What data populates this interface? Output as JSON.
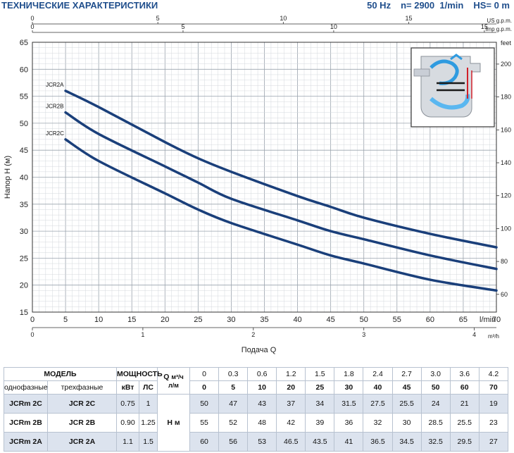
{
  "header": {
    "title": "ТЕХНИЧЕСКИЕ ХАРАКТЕРИСТИКИ",
    "frequency": "50 Hz",
    "speed": "n= 2900  1/min",
    "hs": "HS= 0 m"
  },
  "chart_data": {
    "type": "line",
    "title": "ТЕХНИЧЕСКИЕ ХАРАКТЕРИСТИКИ",
    "xlabel": "Подача  Q",
    "ylabel": "Напор H (м)",
    "x_unit": "l/min",
    "xlim": [
      0,
      70
    ],
    "ylim": [
      15,
      65
    ],
    "x_ticks": [
      0,
      5,
      10,
      15,
      20,
      25,
      30,
      35,
      40,
      45,
      50,
      55,
      60,
      65,
      70
    ],
    "y_ticks": [
      15,
      20,
      25,
      30,
      35,
      40,
      45,
      50,
      55,
      60,
      65
    ],
    "series": [
      {
        "name": "JCR2A",
        "x": [
          5,
          10,
          20,
          25,
          30,
          40,
          45,
          50,
          60,
          70
        ],
        "y": [
          56,
          53,
          46.5,
          43.5,
          41,
          36.5,
          34.5,
          32.5,
          29.5,
          27
        ]
      },
      {
        "name": "JCR2B",
        "x": [
          5,
          10,
          20,
          25,
          30,
          40,
          45,
          50,
          60,
          70
        ],
        "y": [
          52,
          48,
          42,
          39,
          36,
          32,
          30,
          28.5,
          25.5,
          23
        ]
      },
      {
        "name": "JCR2C",
        "x": [
          5,
          10,
          20,
          25,
          30,
          40,
          45,
          50,
          60,
          70
        ],
        "y": [
          47,
          43,
          37,
          34,
          31.5,
          27.5,
          25.5,
          24,
          21,
          19
        ]
      }
    ],
    "color": "#1a3f7a",
    "top_axes": [
      {
        "unit": "US g.p.m.",
        "ticks": [
          "0",
          "5",
          "10",
          "15"
        ],
        "values": [
          0,
          5,
          10,
          15
        ],
        "per_lmin": 0.2642
      },
      {
        "unit": "Imp g.p.m.",
        "ticks": [
          "0",
          "5",
          "10",
          "15"
        ],
        "values": [
          0,
          5,
          10,
          15
        ],
        "per_lmin": 0.22
      }
    ],
    "bottom_axis": {
      "unit": "m³/h",
      "ticks": [
        "0",
        "1",
        "2",
        "3",
        "4"
      ],
      "values": [
        0,
        1,
        2,
        3,
        4
      ],
      "per_lmin": 0.06
    },
    "right_axis": {
      "unit": "feet",
      "ticks": [
        "60",
        "80",
        "100",
        "120",
        "140",
        "160",
        "180",
        "200"
      ],
      "values": [
        60,
        80,
        100,
        120,
        140,
        160,
        180,
        200
      ],
      "per_m": 3.2808
    }
  },
  "table": {
    "model_label": "МОДЕЛЬ",
    "single_phase_label": "однофазные",
    "three_phase_label": "трехфазные",
    "power_label": "МОЩНОСТЬ",
    "kw_label": "кВт",
    "hp_label": "ЛС",
    "q_label": "Q",
    "q_unit1": "м³/ч",
    "q_unit2": "л/м",
    "h_label": "H  м",
    "q_m3h": [
      "0",
      "0.3",
      "0.6",
      "1.2",
      "1.5",
      "1.8",
      "2.4",
      "2.7",
      "3.0",
      "3.6",
      "4.2"
    ],
    "q_lmin": [
      "0",
      "5",
      "10",
      "20",
      "25",
      "30",
      "40",
      "45",
      "50",
      "60",
      "70"
    ],
    "rows": [
      {
        "single": "JCRm 2C",
        "three": "JCR 2C",
        "kw": "0.75",
        "hp": "1",
        "h": [
          "50",
          "47",
          "43",
          "37",
          "34",
          "31.5",
          "27.5",
          "25.5",
          "24",
          "21",
          "19"
        ]
      },
      {
        "single": "JCRm 2B",
        "three": "JCR 2B",
        "kw": "0.90",
        "hp": "1.25",
        "h": [
          "55",
          "52",
          "48",
          "42",
          "39",
          "36",
          "32",
          "30",
          "28.5",
          "25.5",
          "23"
        ]
      },
      {
        "single": "JCRm 2A",
        "three": "JCR 2A",
        "kw": "1.1",
        "hp": "1.5",
        "h": [
          "60",
          "56",
          "53",
          "46.5",
          "43.5",
          "41",
          "36.5",
          "34.5",
          "32.5",
          "29.5",
          "27"
        ]
      }
    ]
  }
}
